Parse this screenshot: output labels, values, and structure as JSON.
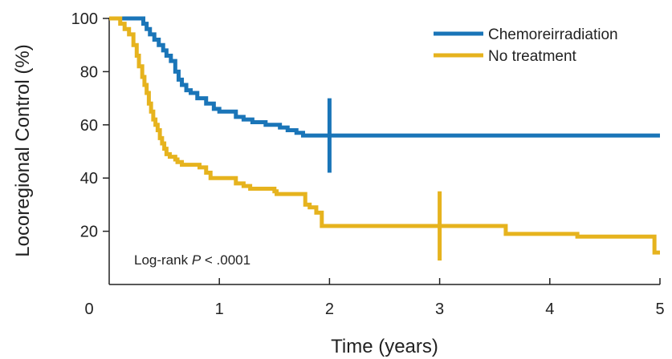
{
  "chart_data": {
    "type": "line",
    "step": true,
    "xlabel": "Time (years)",
    "ylabel": "Locoregional Control (%)",
    "xlim": [
      0,
      5
    ],
    "ylim": [
      0,
      100
    ],
    "xticks": [
      0,
      1,
      2,
      3,
      4,
      5
    ],
    "yticks": [
      20,
      40,
      60,
      80,
      100
    ],
    "xtick_labels": [
      "0",
      "1",
      "2",
      "3",
      "4",
      "5"
    ],
    "ytick_labels": [
      "20",
      "40",
      "60",
      "80",
      "100"
    ],
    "grid": false,
    "legend_position": "top-right",
    "annotation": {
      "prefix": "Log-rank ",
      "p_symbol": "P",
      "suffix": " < .0001"
    },
    "series": [
      {
        "name": "Chemoreirradiation",
        "color": "#1a75b8",
        "x": [
          0,
          0.28,
          0.31,
          0.34,
          0.37,
          0.41,
          0.45,
          0.49,
          0.52,
          0.56,
          0.6,
          0.63,
          0.66,
          0.7,
          0.74,
          0.8,
          0.88,
          0.95,
          1.0,
          1.1,
          1.15,
          1.22,
          1.3,
          1.42,
          1.55,
          1.62,
          1.7,
          1.76,
          2.0,
          3.0,
          5.0
        ],
        "y": [
          100,
          100,
          98,
          96,
          94,
          92,
          90,
          88,
          86,
          84,
          80,
          77,
          75,
          73,
          72,
          70,
          68,
          66,
          65,
          65,
          63,
          62,
          61,
          60,
          59,
          58,
          57,
          56,
          56,
          56,
          56
        ],
        "censor_marks": [
          {
            "x": 2.0,
            "y": 56,
            "half_height": 14
          }
        ]
      },
      {
        "name": "No treatment",
        "color": "#e6b31e",
        "x": [
          0,
          0.1,
          0.14,
          0.18,
          0.22,
          0.25,
          0.27,
          0.3,
          0.32,
          0.34,
          0.36,
          0.38,
          0.4,
          0.42,
          0.44,
          0.46,
          0.48,
          0.5,
          0.52,
          0.55,
          0.58,
          0.6,
          0.62,
          0.66,
          0.82,
          0.88,
          0.92,
          1.15,
          1.22,
          1.28,
          1.5,
          1.52,
          1.78,
          1.82,
          1.88,
          1.93,
          2.1,
          3.0,
          3.55,
          3.6,
          4.25,
          4.95,
          5.0
        ],
        "y": [
          100,
          98,
          96,
          94,
          90,
          86,
          82,
          78,
          75,
          72,
          68,
          65,
          62,
          60,
          58,
          55,
          53,
          51,
          49,
          48,
          48,
          47,
          46,
          45,
          44,
          42,
          40,
          38,
          37,
          36,
          35,
          34,
          30,
          29,
          27,
          22,
          22,
          22,
          22,
          19,
          18,
          12,
          12
        ],
        "censor_marks": [
          {
            "x": 3.0,
            "y": 22,
            "half_height": 13
          }
        ]
      }
    ]
  }
}
